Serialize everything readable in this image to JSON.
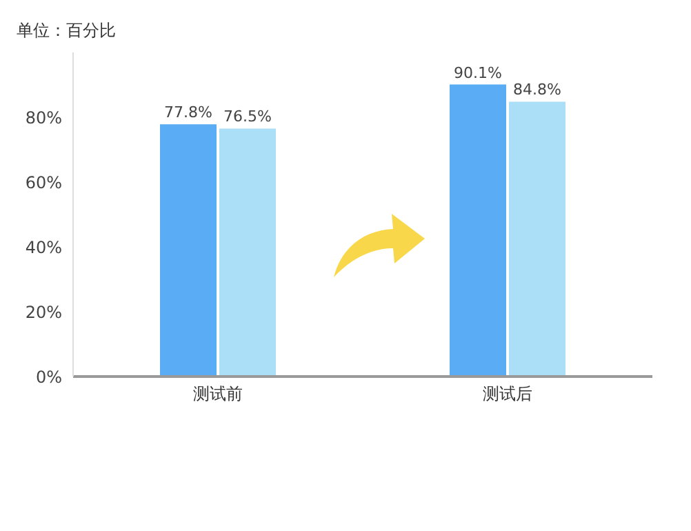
{
  "chart_data": {
    "type": "bar",
    "title": "单位：百分比",
    "categories": [
      "测试前",
      "测试后"
    ],
    "series": [
      {
        "color": "#5aacf5",
        "values": [
          77.8,
          90.1
        ]
      },
      {
        "color": "#aadff7",
        "values": [
          76.5,
          84.8
        ]
      }
    ],
    "value_labels": [
      [
        "77.8%",
        "90.1%"
      ],
      [
        "76.5%",
        "84.8%"
      ]
    ],
    "ylim": [
      0,
      100
    ],
    "yticks": [
      {
        "value": 0,
        "label": "0%"
      },
      {
        "value": 20,
        "label": "20%"
      },
      {
        "value": 40,
        "label": "40%"
      },
      {
        "value": 60,
        "label": "60%"
      },
      {
        "value": 80,
        "label": "80%"
      }
    ],
    "grid": false,
    "legend": false
  }
}
